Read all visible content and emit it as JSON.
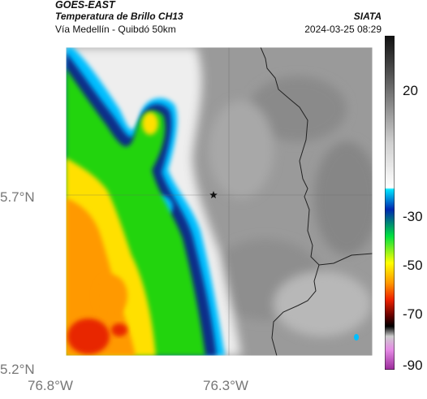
{
  "header": {
    "satellite": "GOES-EAST",
    "product": "Temperatura de Brillo CH13",
    "region": "Vía Medellín - Quibdó 50km",
    "brand": "SIATA",
    "timestamp": "2024-03-25 08:29"
  },
  "axes": {
    "y_ticks": [
      {
        "label": "5.7°N",
        "value": 5.7
      },
      {
        "label": "5.2°N",
        "value": 5.2
      }
    ],
    "x_ticks": [
      {
        "label": "76.8°W",
        "value": -76.8
      },
      {
        "label": "76.3°W",
        "value": -76.3
      }
    ]
  },
  "colorbar": {
    "ticks": [
      {
        "label": "20",
        "value": 20
      },
      {
        "label": "-30",
        "value": -30
      },
      {
        "label": "-50",
        "value": -50
      },
      {
        "label": "-70",
        "value": -70
      },
      {
        "label": "-90",
        "value": -90
      }
    ]
  },
  "colors": {
    "land_gray": "#9a9a9a",
    "cloud_white": "#f2f2f2",
    "cyan": "#00bfff",
    "deep_blue": "#002a88",
    "green": "#21d40a",
    "yellow": "#ffe000",
    "orange": "#ff9900",
    "red": "#e82600"
  },
  "marker": {
    "name": "star-icon"
  }
}
